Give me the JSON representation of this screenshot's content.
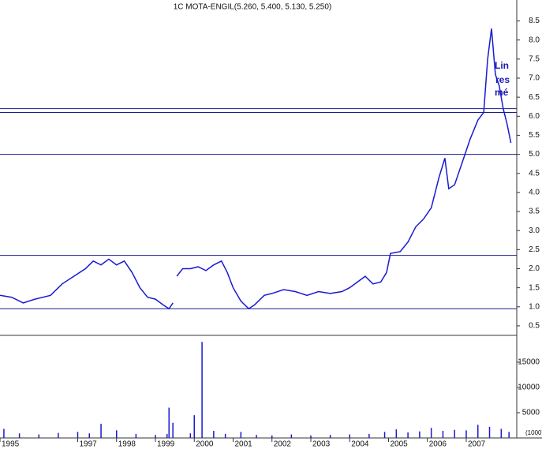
{
  "chart_data": {
    "type": "line",
    "title": "1C MOTA-ENGIL(5.260, 5.400, 5.130, 5.250)",
    "color": "#1a1ad0",
    "x": [
      1995.0,
      1995.3,
      1995.6,
      1995.9,
      1996.3,
      1996.6,
      1996.9,
      1997.2,
      1997.4,
      1997.6,
      1997.8,
      1998.0,
      1998.2,
      1998.4,
      1998.6,
      1998.8,
      1999.0,
      1999.2,
      1999.35,
      1999.45,
      1999.5,
      1999.55,
      1999.7,
      1999.9,
      2000.1,
      2000.3,
      2000.5,
      2000.7,
      2000.85,
      2001.0,
      2001.2,
      2001.4,
      2001.55,
      2001.8,
      2002.0,
      2002.3,
      2002.6,
      2002.9,
      2003.2,
      2003.5,
      2003.8,
      2004.0,
      2004.2,
      2004.4,
      2004.6,
      2004.8,
      2004.95,
      2005.05,
      2005.3,
      2005.5,
      2005.7,
      2005.9,
      2006.1,
      2006.3,
      2006.45,
      2006.55,
      2006.7,
      2006.9,
      2007.1,
      2007.3,
      2007.45,
      2007.55,
      2007.65,
      2007.75,
      2007.85,
      2007.95,
      2008.05,
      2008.15
    ],
    "values": [
      1.3,
      1.25,
      1.1,
      1.2,
      1.3,
      1.6,
      1.8,
      2.0,
      2.2,
      2.1,
      2.25,
      2.1,
      2.2,
      1.9,
      1.5,
      1.25,
      1.2,
      1.05,
      0.95,
      1.1,
      null,
      1.8,
      2.0,
      2.0,
      2.05,
      1.95,
      2.1,
      2.2,
      1.9,
      1.5,
      1.15,
      0.95,
      1.05,
      1.3,
      1.35,
      1.45,
      1.4,
      1.3,
      1.4,
      1.35,
      1.4,
      1.5,
      1.65,
      1.8,
      1.6,
      1.65,
      1.9,
      2.4,
      2.45,
      2.7,
      3.1,
      3.3,
      3.6,
      4.4,
      4.9,
      4.1,
      4.2,
      4.8,
      5.4,
      5.9,
      6.1,
      7.5,
      8.3,
      7.1,
      6.8,
      6.2,
      5.8,
      5.3
    ],
    "xlim": [
      1995.0,
      2008.3
    ],
    "xticks": [
      1995,
      1997,
      1998,
      1999,
      2000,
      2001,
      2002,
      2003,
      2004,
      2005,
      2006,
      2007
    ],
    "ylim": [
      0.25,
      9.05
    ],
    "yticks": [
      0.5,
      {
        "value": 1.0,
        "label": "1.0"
      },
      1.5,
      {
        "value": 2.0,
        "label": "2.0"
      },
      2.5,
      {
        "value": 3.0,
        "label": "3.0"
      },
      3.5,
      {
        "value": 4.0,
        "label": "4.0"
      },
      4.5,
      {
        "value": 5.0,
        "label": "5.0"
      },
      5.5,
      {
        "value": 6.0,
        "label": "6.0"
      },
      6.5,
      {
        "value": 7.0,
        "label": "7.0"
      },
      7.5,
      {
        "value": 8.0,
        "label": "8.0"
      },
      8.5
    ],
    "hlines": [
      6.2,
      6.1,
      5.0,
      2.35,
      0.95
    ],
    "hline_color": "#1a1a90",
    "annotations": [
      "Lin",
      "res",
      "mé"
    ],
    "volume": {
      "x": [
        1995.1,
        1995.5,
        1996.0,
        1996.5,
        1997.0,
        1997.3,
        1997.6,
        1998.0,
        1998.5,
        1999.0,
        1999.3,
        1999.35,
        1999.45,
        1999.9,
        2000.0,
        2000.2,
        2000.5,
        2000.8,
        2001.2,
        2001.6,
        2002.0,
        2002.5,
        2003.0,
        2003.5,
        2004.0,
        2004.5,
        2004.9,
        2005.2,
        2005.5,
        2005.8,
        2006.1,
        2006.4,
        2006.7,
        2007.0,
        2007.3,
        2007.6,
        2007.9,
        2008.1
      ],
      "values": [
        1800,
        900,
        700,
        1000,
        1200,
        900,
        2800,
        1500,
        800,
        600,
        800,
        6000,
        3000,
        900,
        4500,
        19000,
        1400,
        800,
        1200,
        600,
        500,
        700,
        500,
        600,
        700,
        800,
        1200,
        1700,
        1100,
        1300,
        2000,
        1400,
        1600,
        1500,
        2600,
        2200,
        1800,
        1200
      ],
      "ylim": [
        0,
        20300
      ],
      "yticks": [
        5000,
        10000,
        15000
      ],
      "unit_label": "(1000)"
    }
  }
}
